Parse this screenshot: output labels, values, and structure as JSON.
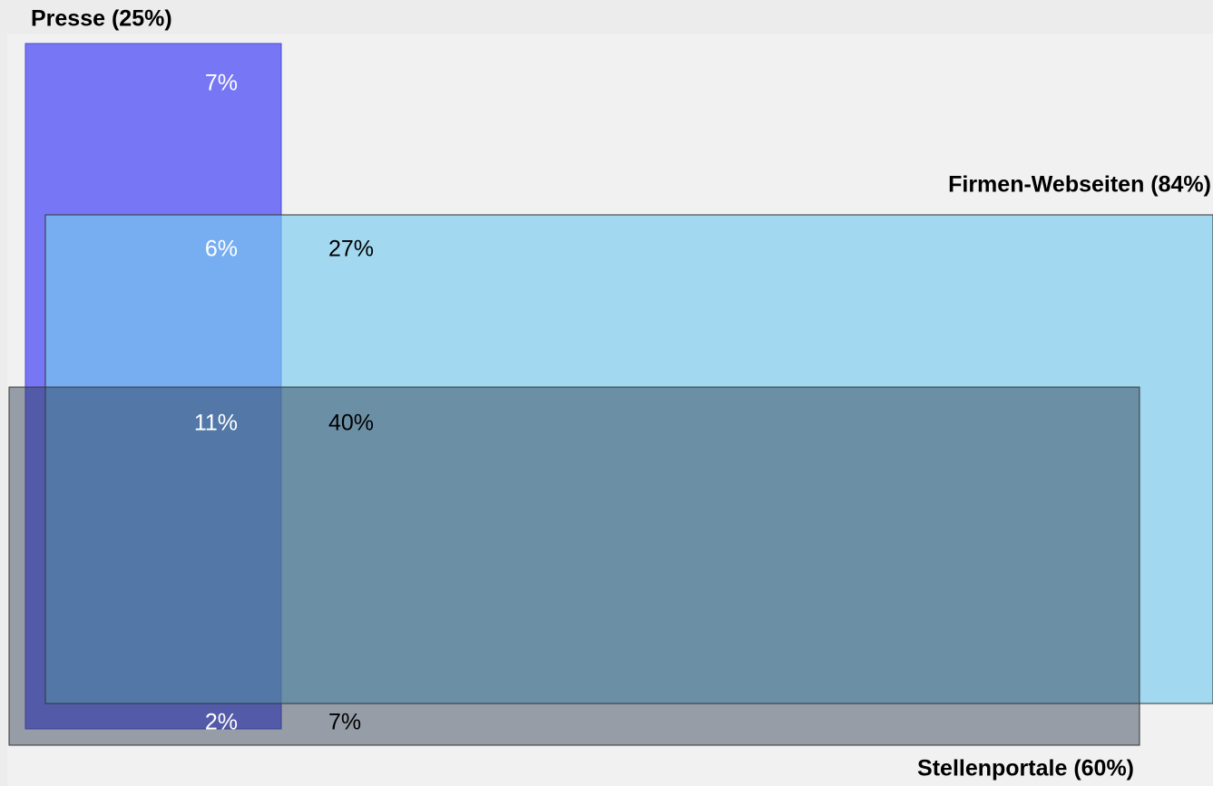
{
  "sets": [
    {
      "label": "Presse (25%)"
    },
    {
      "label": "Firmen-Webseiten (84%)"
    },
    {
      "label": "Stellenportale (60%)"
    }
  ],
  "regions": [
    {
      "label": "7%"
    },
    {
      "label": "6%"
    },
    {
      "label": "27%"
    },
    {
      "label": "11%"
    },
    {
      "label": "40%"
    },
    {
      "label": "2%"
    },
    {
      "label": "7%"
    }
  ]
}
